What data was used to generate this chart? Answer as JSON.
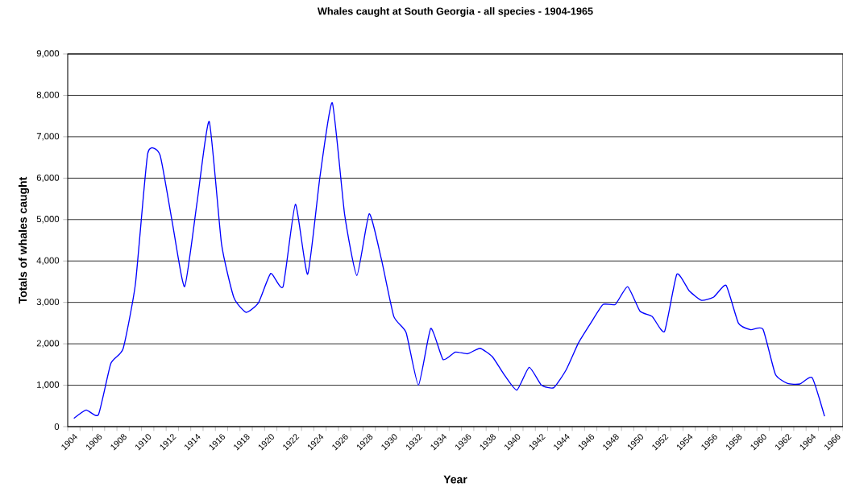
{
  "chart_data": {
    "type": "line",
    "title": "Whales caught at South Georgia - all species - 1904-1965",
    "xlabel": "Year",
    "ylabel": "Totals of whales caught",
    "categories": [
      "1904",
      null,
      "1906",
      null,
      "1908",
      null,
      "1910",
      null,
      "1912",
      null,
      "1914",
      null,
      "1916",
      null,
      "1918",
      null,
      "1920",
      null,
      "1922",
      null,
      "1924",
      null,
      "1926",
      null,
      "1928",
      null,
      "1930",
      null,
      "1932",
      null,
      "1934",
      null,
      "1936",
      null,
      "1938",
      null,
      "1940",
      null,
      "1942",
      null,
      "1944",
      null,
      "1946",
      null,
      "1948",
      null,
      "1950",
      null,
      "1952",
      null,
      "1954",
      null,
      "1956",
      null,
      "1958",
      null,
      "1960",
      null,
      "1962",
      null,
      "1964",
      null,
      "1966"
    ],
    "series": [
      {
        "color": "#0000ff",
        "values": [
          200,
          400,
          290,
          1520,
          1880,
          3440,
          6590,
          6560,
          4930,
          3380,
          5390,
          7370,
          4410,
          3120,
          2760,
          2990,
          3700,
          3380,
          5370,
          3680,
          6040,
          7820,
          5130,
          3650,
          5140,
          4030,
          2660,
          2270,
          1000,
          2370,
          1620,
          1800,
          1760,
          1890,
          1690,
          1240,
          880,
          1430,
          1000,
          940,
          1370,
          2020,
          2500,
          2950,
          2950,
          3380,
          2790,
          2660,
          2300,
          3680,
          3280,
          3050,
          3130,
          3410,
          2500,
          2340,
          2350,
          1270,
          1040,
          1030,
          1180,
          250,
          null
        ]
      }
    ],
    "ylim": [
      0,
      9000
    ],
    "yticks": [
      0,
      {
        "value": 1000,
        "label": "1,000"
      },
      {
        "value": 2000,
        "label": "2,000"
      },
      {
        "value": 3000,
        "label": "3,000"
      },
      {
        "value": 4000,
        "label": "4,000"
      },
      {
        "value": 5000,
        "label": "5,000"
      },
      {
        "value": 6000,
        "label": "6,000"
      },
      {
        "value": 7000,
        "label": "7,000"
      },
      {
        "value": 8000,
        "label": "8,000"
      },
      {
        "value": 9000,
        "label": "9,000"
      }
    ],
    "grid": "y",
    "marker": "none",
    "line_style": "solid"
  }
}
